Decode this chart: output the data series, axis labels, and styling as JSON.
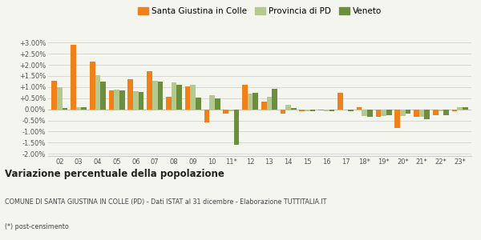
{
  "categories": [
    "02",
    "03",
    "04",
    "05",
    "06",
    "07",
    "08",
    "09",
    "10",
    "11*",
    "12",
    "13",
    "14",
    "15",
    "16",
    "17",
    "18*",
    "19*",
    "20*",
    "21*",
    "22*",
    "23*"
  ],
  "santa": [
    1.3,
    2.9,
    2.15,
    0.85,
    1.35,
    1.7,
    0.55,
    1.05,
    -0.6,
    -0.2,
    1.1,
    0.35,
    -0.2,
    -0.1,
    -0.05,
    0.75,
    0.1,
    -0.35,
    -0.85,
    -0.35,
    -0.25,
    -0.1
  ],
  "provincia": [
    1.0,
    0.1,
    1.55,
    0.9,
    0.8,
    1.3,
    1.2,
    1.1,
    0.65,
    -0.1,
    0.7,
    0.55,
    0.2,
    -0.1,
    -0.1,
    -0.05,
    -0.3,
    -0.3,
    -0.3,
    -0.35,
    -0.1,
    0.1
  ],
  "veneto": [
    0.05,
    0.1,
    1.25,
    0.85,
    0.78,
    1.25,
    1.1,
    0.52,
    0.5,
    -1.6,
    0.75,
    0.92,
    0.05,
    -0.1,
    -0.1,
    -0.07,
    -0.35,
    -0.25,
    -0.2,
    -0.45,
    -0.25,
    0.1
  ],
  "santa_color": "#f0801a",
  "provincia_color": "#b5c98e",
  "veneto_color": "#6b8f3e",
  "title": "Variazione percentuale della popolazione",
  "subtitle": "COMUNE DI SANTA GIUSTINA IN COLLE (PD) - Dati ISTAT al 31 dicembre - Elaborazione TUTTITALIA.IT",
  "footnote": "(*) post-censimento",
  "ylim": [
    -2.1,
    3.3
  ],
  "yticks": [
    -2.0,
    -1.5,
    -1.0,
    -0.5,
    0.0,
    0.5,
    1.0,
    1.5,
    2.0,
    2.5,
    3.0
  ],
  "bg_color": "#f5f5f0",
  "legend_labels": [
    "Santa Giustina in Colle",
    "Provincia di PD",
    "Veneto"
  ],
  "legend_colors": [
    "#f0801a",
    "#b5c98e",
    "#6b8f3e"
  ]
}
